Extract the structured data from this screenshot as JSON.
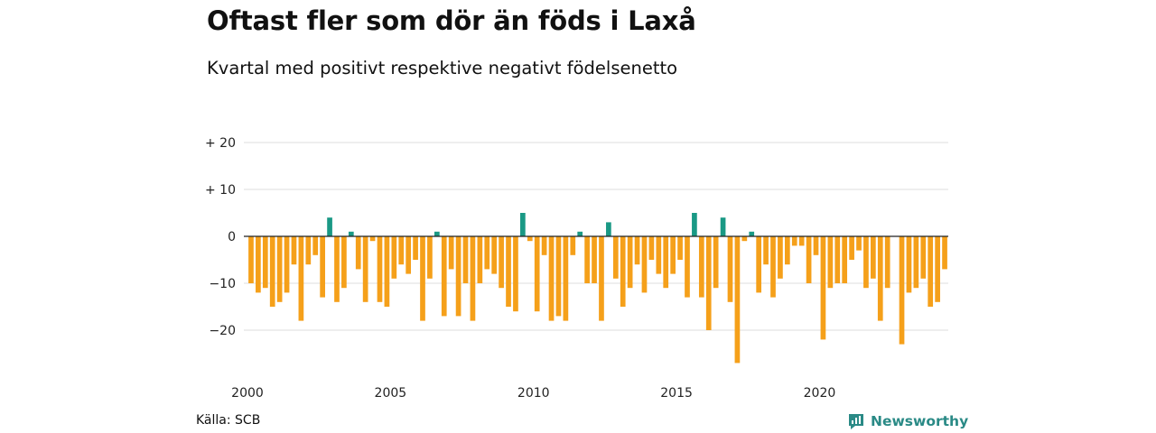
{
  "chart_data": {
    "type": "bar",
    "title": "Oftast fler som dör än föds i Laxå",
    "subtitle": "Kvartal med positivt respektive negativt födelsenetto",
    "xlabel": "",
    "ylabel": "",
    "x_start": "2000 Q1",
    "x_frequency": "quarterly",
    "x_tick_labels": [
      "2000",
      "2005",
      "2010",
      "2015",
      "2020"
    ],
    "y_tick_labels": [
      "+ 20",
      "+ 10",
      "0",
      "−10",
      "−20"
    ],
    "ylim": [
      -27,
      20
    ],
    "grid": true,
    "colors": {
      "positive": "#1a9985",
      "negative": "#f5a01a"
    },
    "values": [
      -10,
      -12,
      -11,
      -15,
      -14,
      -12,
      -6,
      -18,
      -6,
      -4,
      -13,
      4,
      -14,
      -11,
      1,
      -7,
      -14,
      -1,
      -14,
      -15,
      -9,
      -6,
      -8,
      -5,
      -18,
      -9,
      1,
      -17,
      -7,
      -17,
      -10,
      -18,
      -10,
      -7,
      -8,
      -11,
      -15,
      -16,
      5,
      -1,
      -16,
      -4,
      -18,
      -17,
      -18,
      -4,
      1,
      -10,
      -10,
      -18,
      3,
      -9,
      -15,
      -11,
      -6,
      -12,
      -5,
      -8,
      -11,
      -8,
      -5,
      -13,
      5,
      -13,
      -20,
      -11,
      4,
      -14,
      -27,
      -1,
      1,
      -12,
      -6,
      -13,
      -9,
      -6,
      -2,
      -2,
      -10,
      -4,
      -22,
      -11,
      -10,
      -10,
      -5,
      -3,
      -11,
      -9,
      -18,
      -11,
      0,
      -23,
      -12,
      -11,
      -9,
      -15,
      -14,
      -7
    ]
  },
  "footer": {
    "source": "Källa: SCB",
    "brand": "Newsworthy"
  }
}
